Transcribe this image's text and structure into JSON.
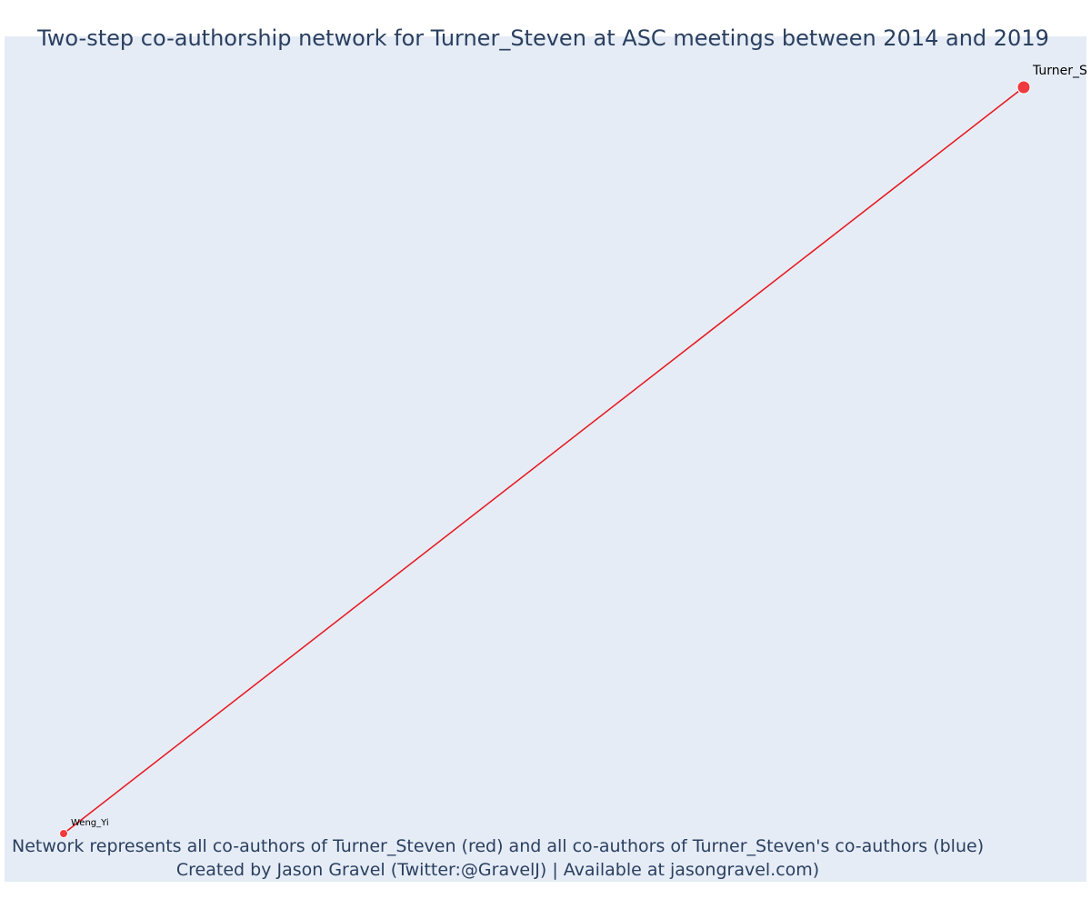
{
  "title": "Two-step co-authorship network for Turner_Steven at ASC meetings between 2014 and 2019",
  "caption": {
    "line1": "Network represents all co-authors of Turner_Steven (red) and all co-authors of Turner_Steven's co-authors (blue)",
    "line2": "Created by Jason Gravel (Twitter:@GravelJ) | Available at jasongravel.com)"
  },
  "colors": {
    "background": "#e5ecf6",
    "edge": "#e8141a",
    "focal_node": "#ef3a3f",
    "coauthor_node": "#ef3a3f",
    "text": "#2a3f5f"
  },
  "network": {
    "nodes": [
      {
        "id": "Turner_Steven",
        "label": "Turner_S",
        "role": "focal"
      },
      {
        "id": "Weng_Yi",
        "label": "Weng_Yi",
        "role": "coauthor"
      }
    ],
    "edges": [
      {
        "source": "Turner_Steven",
        "target": "Weng_Yi"
      }
    ]
  }
}
